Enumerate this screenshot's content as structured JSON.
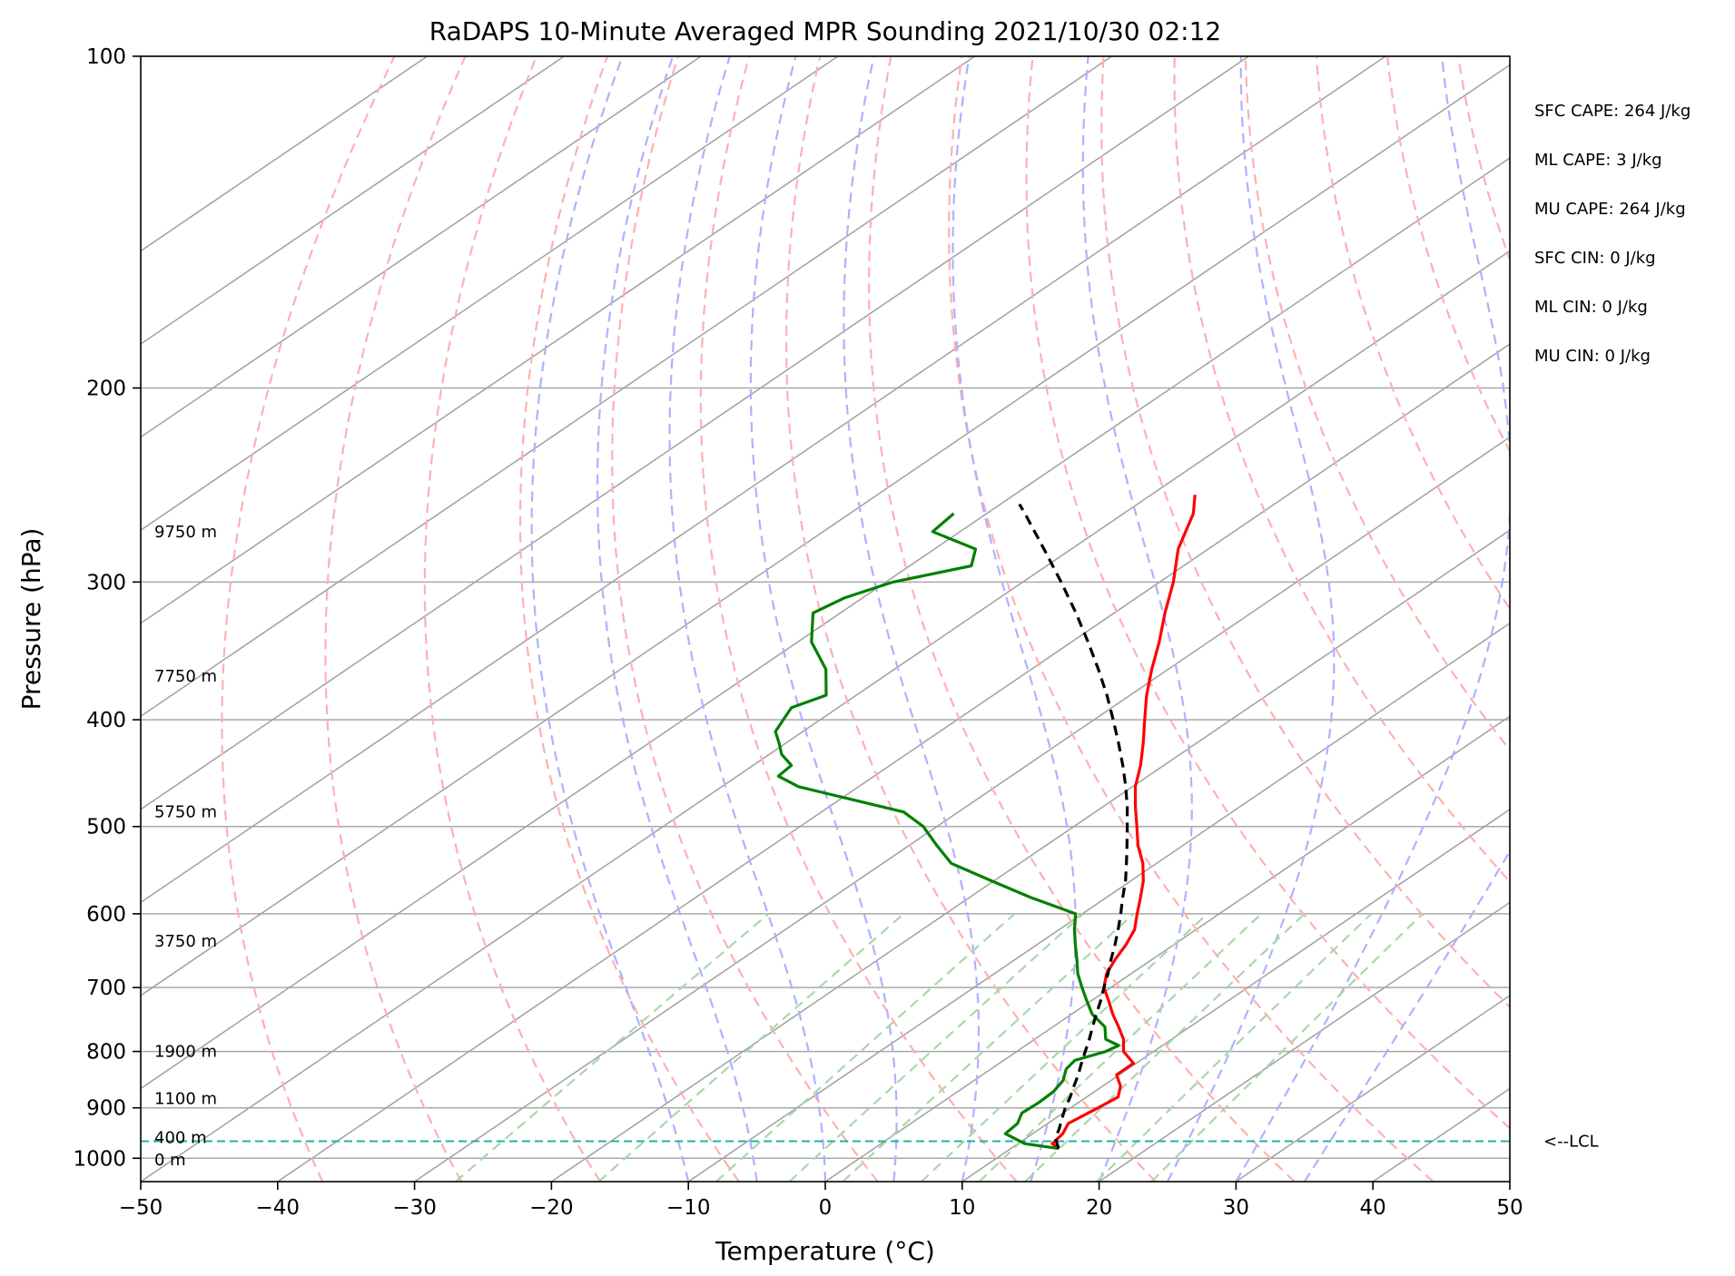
{
  "chart_data": {
    "type": "line",
    "title": "RaDAPS 10-Minute Averaged MPR Sounding 2021/10/30 02:12",
    "xlabel": "Temperature (°C)",
    "ylabel": "Pressure (hPa)",
    "xlim": [
      -50,
      50
    ],
    "ylim": [
      1050,
      100
    ],
    "y_scale": "log",
    "grid": true,
    "x_ticks": [
      "−50",
      "−40",
      "−30",
      "−20",
      "−10",
      "0",
      "10",
      "20",
      "30",
      "40",
      "50"
    ],
    "x_tick_values": [
      -50,
      -40,
      -30,
      -20,
      -10,
      0,
      10,
      20,
      30,
      40,
      50
    ],
    "y_ticks": [
      "100",
      "200",
      "300",
      "400",
      "500",
      "600",
      "700",
      "800",
      "900",
      "1000"
    ],
    "y_tick_values": [
      100,
      200,
      300,
      400,
      500,
      600,
      700,
      800,
      900,
      1000
    ],
    "background_lines": {
      "isotherms_c": [
        -150,
        -140,
        -130,
        -120,
        -110,
        -100,
        -90,
        -80,
        -70,
        -60,
        -50,
        -40,
        -30,
        -20,
        -10,
        0,
        10,
        20,
        30,
        40,
        50
      ],
      "dry_adiabats_c": [
        -40,
        -30,
        -20,
        -10,
        0,
        10,
        20,
        30,
        40,
        50,
        60,
        70,
        80,
        90,
        100,
        110,
        120,
        130,
        140
      ],
      "moist_adiabats_c": [
        -10,
        -5,
        0,
        5,
        10,
        15,
        20,
        25,
        30,
        35
      ],
      "mixing_ratios_gkg": [
        0.4,
        1,
        2,
        3,
        4,
        6,
        8,
        10,
        14,
        18
      ]
    },
    "series": [
      {
        "role": "temperature",
        "color": "#ff0000",
        "pressure": [
          980,
          970,
          950,
          930,
          900,
          880,
          860,
          840,
          820,
          800,
          780,
          760,
          740,
          720,
          700,
          680,
          660,
          640,
          620,
          600,
          580,
          560,
          540,
          520,
          500,
          480,
          460,
          440,
          420,
          400,
          380,
          360,
          340,
          320,
          300,
          280,
          260,
          250
        ],
        "temp_c": [
          13.5,
          12.5,
          12.2,
          11.5,
          12.0,
          12.3,
          11.3,
          9.8,
          9.8,
          7.8,
          6.5,
          4.8,
          3.0,
          1.3,
          -0.5,
          -1.8,
          -2.7,
          -3.5,
          -4.5,
          -6.0,
          -7.5,
          -9.1,
          -11.0,
          -13.3,
          -15.4,
          -17.6,
          -19.8,
          -21.7,
          -23.9,
          -26.3,
          -28.8,
          -31.2,
          -33.6,
          -36.3,
          -39.0,
          -42.2,
          -44.9,
          -46.8
        ]
      },
      {
        "role": "dewpoint",
        "color": "#008000",
        "pressure": [
          980,
          970,
          950,
          930,
          910,
          890,
          870,
          850,
          830,
          815,
          800,
          790,
          780,
          760,
          740,
          720,
          700,
          680,
          660,
          640,
          620,
          600,
          580,
          560,
          540,
          520,
          500,
          485,
          460,
          450,
          440,
          430,
          420,
          410,
          400,
          390,
          380,
          360,
          340,
          320,
          310,
          300,
          290,
          280,
          270,
          260
        ],
        "dewpoint_c": [
          13.5,
          10.5,
          8.0,
          7.8,
          7.0,
          7.1,
          7.0,
          6.5,
          5.5,
          5.2,
          6.5,
          6.8,
          5.2,
          3.8,
          1.5,
          -0.3,
          -2.1,
          -3.9,
          -5.5,
          -7.2,
          -8.9,
          -10.5,
          -15.5,
          -20.2,
          -25.0,
          -28.0,
          -31.0,
          -34.0,
          -44.4,
          -47.0,
          -47.2,
          -49.1,
          -50.5,
          -52.0,
          -52.7,
          -53.4,
          -52.2,
          -55.0,
          -59.0,
          -62.0,
          -61.3,
          -59.5,
          -55.5,
          -57.0,
          -62.0,
          -62.4
        ]
      },
      {
        "role": "parcel",
        "color": "#000000",
        "pressure": [
          980,
          960,
          940,
          920,
          900,
          880,
          860,
          840,
          820,
          800,
          780,
          760,
          740,
          720,
          700,
          680,
          660,
          640,
          620,
          600,
          580,
          560,
          540,
          520,
          500,
          480,
          460,
          440,
          420,
          400,
          380,
          360,
          340,
          320,
          300,
          280,
          260,
          255
        ],
        "temp_c": [
          13.5,
          12.2,
          11.4,
          10.5,
          9.6,
          8.8,
          7.9,
          7.0,
          6.0,
          5.0,
          4.0,
          2.9,
          1.8,
          0.7,
          -0.5,
          -1.7,
          -3.0,
          -4.3,
          -5.7,
          -7.2,
          -8.8,
          -10.4,
          -12.2,
          -14.1,
          -16.1,
          -18.2,
          -20.5,
          -23.0,
          -25.7,
          -28.6,
          -31.7,
          -35.1,
          -38.8,
          -42.8,
          -47.2,
          -52.0,
          -57.2,
          -58.6
        ]
      }
    ],
    "height_labels": [
      {
        "label": "9750 m",
        "pressure": 270
      },
      {
        "label": "7750 m",
        "pressure": 365
      },
      {
        "label": "5750 m",
        "pressure": 485
      },
      {
        "label": "3750 m",
        "pressure": 635
      },
      {
        "label": "1900 m",
        "pressure": 800
      },
      {
        "label": "1100 m",
        "pressure": 883
      },
      {
        "label": "400 m",
        "pressure": 958
      },
      {
        "label": "0 m",
        "pressure": 1003
      }
    ],
    "lcl": {
      "pressure": 965,
      "label": "<--LCL",
      "color": "#20b2aa"
    },
    "stats": [
      "SFC CAPE: 264 J/kg",
      "ML CAPE: 3 J/kg",
      "MU CAPE: 264 J/kg",
      "SFC CIN: 0 J/kg",
      "ML CIN: 0 J/kg",
      "MU CIN: 0 J/kg"
    ],
    "colors": {
      "isotherm": "#a0a0a0",
      "pressure_grid": "#a8a8a8",
      "dry_adiabat": "#ffb0b0",
      "moist_adiabat": "#b0b0ff",
      "mixing_ratio": "#a8d8a8"
    }
  }
}
